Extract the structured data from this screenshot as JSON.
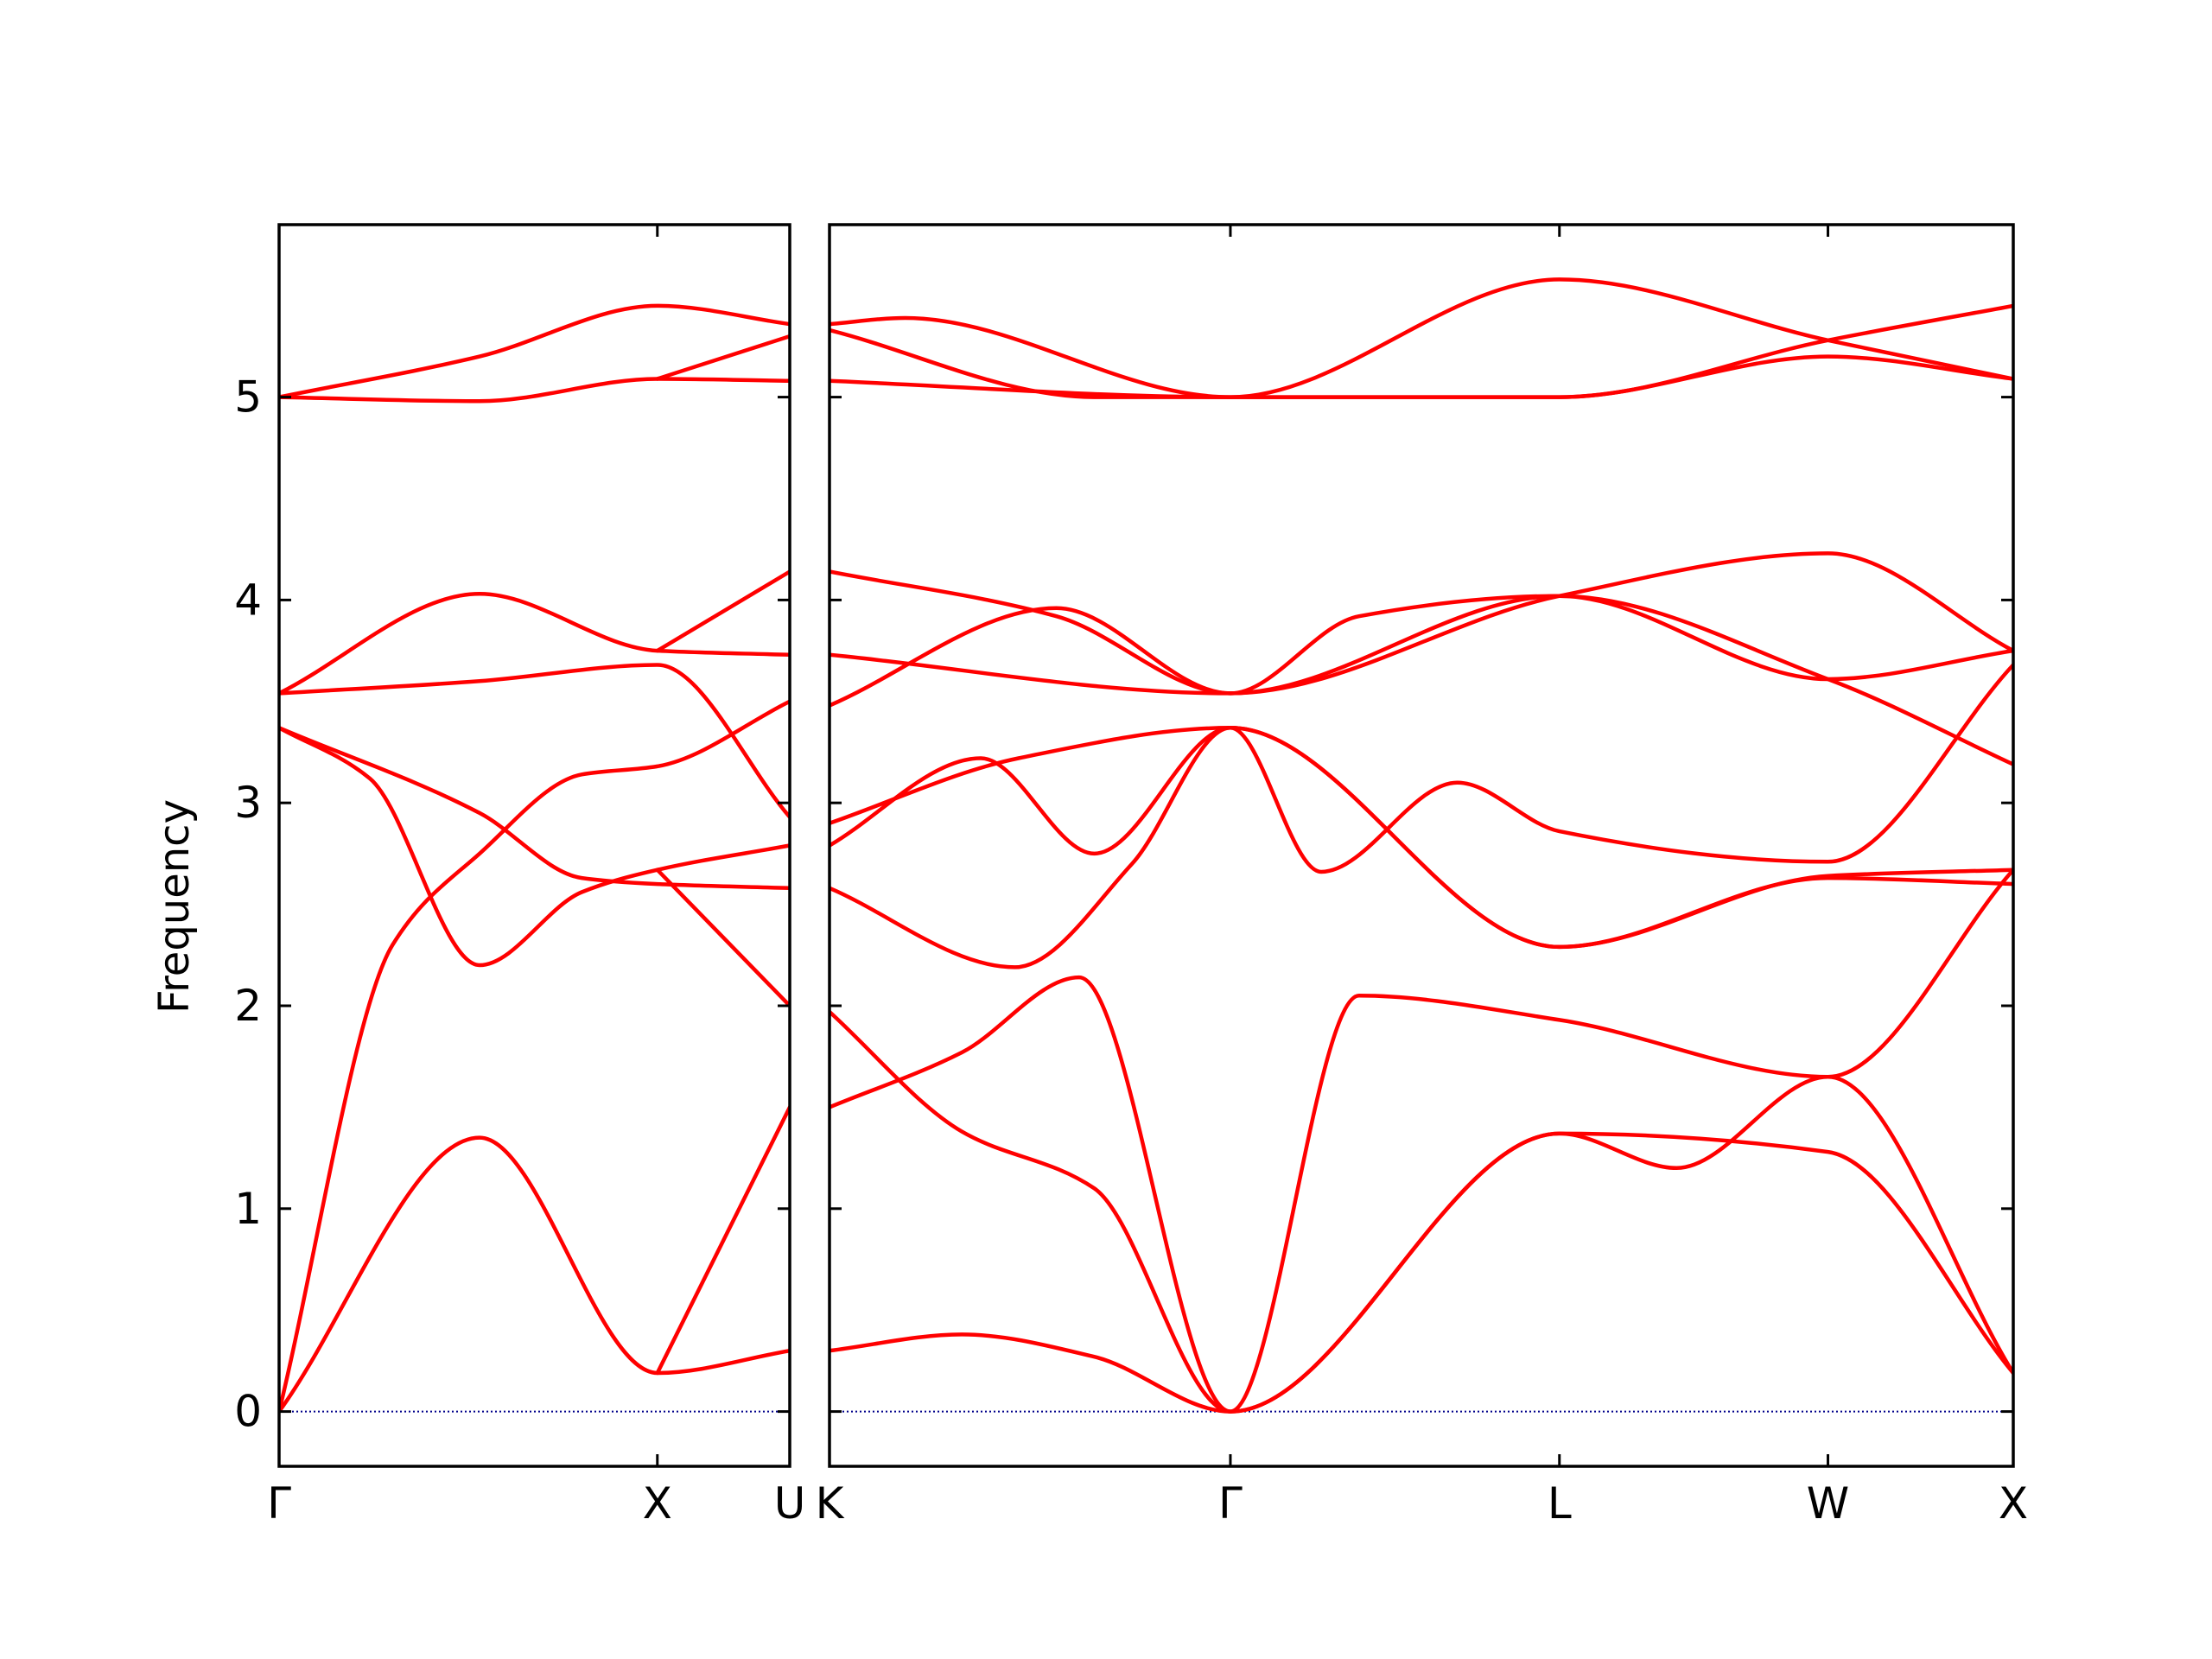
{
  "chart_data": {
    "type": "line",
    "ylabel": "Frequency",
    "ylim": [
      -0.27,
      5.85
    ],
    "yticks": [
      0,
      1,
      2,
      3,
      4,
      5
    ],
    "grid": false,
    "line_color": "#ff0000",
    "zero_line_color": "#00008b",
    "panels": [
      {
        "path": "Γ–X–U",
        "xlim": [
          0,
          1.35
        ],
        "ticks": [
          {
            "label": "Γ",
            "x": 0
          },
          {
            "label": "X",
            "x": 1.0
          },
          {
            "label": "U",
            "x": 1.35
          }
        ],
        "bands": [
          [
            [
              0,
              0
            ],
            [
              0.53,
              1.35
            ],
            [
              1.0,
              0.19
            ],
            [
              1.35,
              0.3
            ]
          ],
          [
            [
              0,
              0
            ],
            [
              0.3,
              2.3
            ],
            [
              0.53,
              2.75
            ],
            [
              0.8,
              3.14
            ],
            [
              1.0,
              3.18
            ],
            [
              1.35,
              3.5
            ]
          ],
          [
            [
              0,
              3.37
            ],
            [
              0.24,
              3.12
            ],
            [
              0.53,
              2.2
            ],
            [
              0.8,
              2.56
            ],
            [
              1.0,
              2.67
            ],
            [
              1.35,
              2.79
            ]
          ],
          [
            [
              0,
              3.37
            ],
            [
              0.53,
              2.95
            ],
            [
              0.8,
              2.63
            ],
            [
              1.0,
              2.6
            ],
            [
              1.35,
              2.58
            ]
          ],
          [
            [
              0,
              3.54
            ],
            [
              0.53,
              3.6
            ],
            [
              1.0,
              3.68
            ],
            [
              1.35,
              2.93
            ]
          ],
          [
            [
              0,
              3.54
            ],
            [
              0.53,
              4.03
            ],
            [
              1.0,
              3.75
            ],
            [
              1.35,
              3.73
            ]
          ],
          [
            [
              0,
              5.0
            ],
            [
              0.53,
              4.98
            ],
            [
              1.0,
              5.09
            ],
            [
              1.35,
              5.08
            ]
          ],
          [
            [
              0,
              5.0
            ],
            [
              0.53,
              5.2
            ],
            [
              1.0,
              5.45
            ],
            [
              1.35,
              5.36
            ]
          ],
          [
            [
              1.0,
              0.19
            ],
            [
              1.35,
              1.5
            ]
          ],
          [
            [
              1.0,
              2.67
            ],
            [
              1.35,
              2.0
            ]
          ],
          [
            [
              1.0,
              3.75
            ],
            [
              1.35,
              4.14
            ]
          ],
          [
            [
              1.0,
              5.09
            ],
            [
              1.35,
              5.3
            ]
          ]
        ]
      },
      {
        "path": "K–Γ–L–W–X",
        "xlim": [
          0,
          3.13
        ],
        "ticks": [
          {
            "label": "K",
            "x": 0
          },
          {
            "label": "Γ",
            "x": 1.06
          },
          {
            "label": "L",
            "x": 1.93
          },
          {
            "label": "W",
            "x": 2.64
          },
          {
            "label": "X",
            "x": 3.13
          }
        ],
        "bands": [
          [
            [
              0,
              0.3
            ],
            [
              0.35,
              0.38
            ],
            [
              0.7,
              0.27
            ],
            [
              1.06,
              0
            ],
            [
              1.93,
              1.37
            ],
            [
              2.64,
              1.28
            ],
            [
              3.13,
              0.19
            ]
          ],
          [
            [
              0,
              1.97
            ],
            [
              0.35,
              1.38
            ],
            [
              0.7,
              1.1
            ],
            [
              1.06,
              0
            ],
            [
              1.93,
              1.37
            ],
            [
              2.24,
              1.2
            ],
            [
              2.64,
              1.65
            ],
            [
              3.13,
              0.19
            ]
          ],
          [
            [
              0,
              1.5
            ],
            [
              0.35,
              1.77
            ],
            [
              0.66,
              2.14
            ],
            [
              1.06,
              0
            ],
            [
              1.4,
              2.05
            ],
            [
              1.93,
              1.93
            ],
            [
              2.64,
              1.65
            ],
            [
              3.13,
              2.67
            ]
          ],
          [
            [
              0,
              2.58
            ],
            [
              0.49,
              2.19
            ],
            [
              0.8,
              2.7
            ],
            [
              1.06,
              3.37
            ],
            [
              1.93,
              2.29
            ],
            [
              2.64,
              2.64
            ],
            [
              3.13,
              2.67
            ]
          ],
          [
            [
              0,
              2.79
            ],
            [
              0.4,
              3.22
            ],
            [
              0.7,
              2.75
            ],
            [
              1.06,
              3.37
            ],
            [
              1.3,
              2.66
            ],
            [
              1.66,
              3.1
            ],
            [
              1.93,
              2.86
            ],
            [
              2.64,
              2.71
            ],
            [
              3.13,
              3.68
            ]
          ],
          [
            [
              0,
              2.9
            ],
            [
              0.5,
              3.22
            ],
            [
              1.06,
              3.37
            ],
            [
              1.93,
              2.29
            ],
            [
              2.64,
              2.63
            ],
            [
              3.13,
              2.6
            ]
          ],
          [
            [
              0,
              3.73
            ],
            [
              1.06,
              3.54
            ],
            [
              1.93,
              4.02
            ],
            [
              2.64,
              3.61
            ],
            [
              3.13,
              3.19
            ]
          ],
          [
            [
              0,
              3.48
            ],
            [
              0.6,
              3.96
            ],
            [
              1.06,
              3.54
            ],
            [
              1.93,
              4.02
            ],
            [
              2.64,
              4.23
            ],
            [
              3.13,
              3.75
            ]
          ],
          [
            [
              0,
              4.14
            ],
            [
              0.6,
              3.92
            ],
            [
              1.06,
              3.54
            ],
            [
              1.4,
              3.92
            ],
            [
              1.93,
              4.02
            ],
            [
              2.64,
              3.61
            ],
            [
              3.13,
              3.75
            ]
          ],
          [
            [
              0,
              5.08
            ],
            [
              1.06,
              5.0
            ],
            [
              1.93,
              5.0
            ],
            [
              2.64,
              5.2
            ],
            [
              3.13,
              5.09
            ]
          ],
          [
            [
              0,
              5.36
            ],
            [
              0.2,
              5.39
            ],
            [
              1.06,
              5.0
            ],
            [
              1.93,
              5.0
            ],
            [
              2.64,
              5.28
            ],
            [
              3.13,
              5.45
            ]
          ],
          [
            [
              0,
              5.33
            ],
            [
              0.7,
              5.0
            ],
            [
              1.06,
              5.0
            ],
            [
              1.93,
              5.58
            ],
            [
              2.64,
              5.28
            ],
            [
              3.13,
              5.09
            ]
          ]
        ]
      }
    ]
  }
}
